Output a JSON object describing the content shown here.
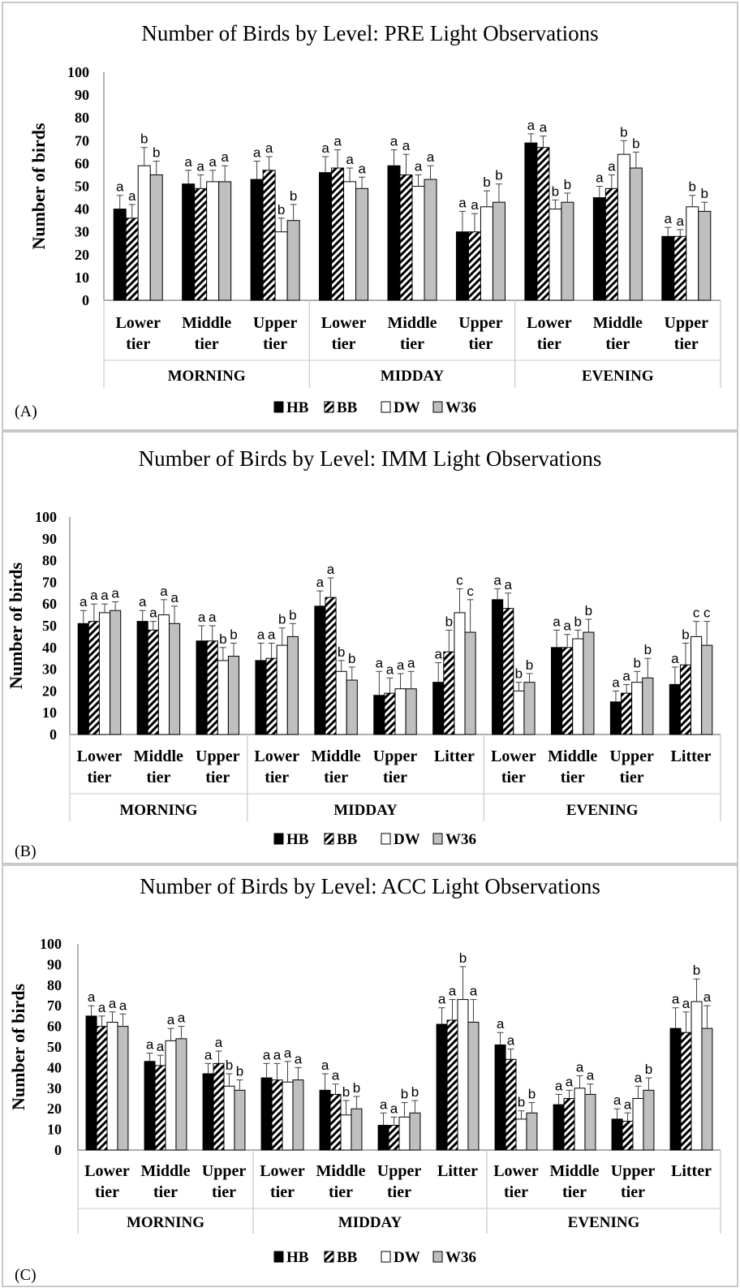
{
  "colors": {
    "HB": "#000000",
    "BB": "hatch",
    "DW": "#ffffff",
    "W36": "#bfbfbf",
    "border": "#c8c8c8",
    "axis": "#7f7f7f",
    "error_bar": "#404040"
  },
  "legend": [
    "HB",
    "BB",
    "DW",
    "W36"
  ],
  "chart_data": [
    {
      "type": "bar",
      "panel_label": "(A)",
      "title": "Number of Birds by Level:  PRE Light Observations",
      "ylabel": "Number of birds",
      "ylim": [
        0,
        100
      ],
      "yticks": [
        "0",
        "10",
        "20",
        "30",
        "40",
        "50",
        "60",
        "70",
        "80",
        "90",
        "100"
      ],
      "grid": false,
      "legend_position": "bottom",
      "series_names": [
        "HB",
        "BB",
        "DW",
        "W36"
      ],
      "groups": [
        {
          "label": "MORNING",
          "categories": [
            {
              "label": [
                "Lower",
                "tier"
              ],
              "values": [
                40,
                36,
                59,
                55
              ],
              "errors": [
                6,
                6,
                8,
                6
              ],
              "letters": [
                "a",
                "a",
                "b",
                "b"
              ]
            },
            {
              "label": [
                "Middle",
                "tier"
              ],
              "values": [
                51,
                49,
                52,
                52
              ],
              "errors": [
                6,
                6,
                5,
                7
              ],
              "letters": [
                "a",
                "a",
                "a",
                "a"
              ]
            },
            {
              "label": [
                "Upper",
                "tier"
              ],
              "values": [
                53,
                57,
                30,
                35
              ],
              "errors": [
                8,
                6,
                6,
                7
              ],
              "letters": [
                "a",
                "a",
                "b",
                "b"
              ]
            }
          ]
        },
        {
          "label": "MIDDAY",
          "categories": [
            {
              "label": [
                "Lower",
                "tier"
              ],
              "values": [
                56,
                58,
                52,
                49
              ],
              "errors": [
                7,
                8,
                6,
                5
              ],
              "letters": [
                "a",
                "a",
                "a",
                "a"
              ]
            },
            {
              "label": [
                "Middle",
                "tier"
              ],
              "values": [
                59,
                55,
                50,
                53
              ],
              "errors": [
                7,
                9,
                5,
                6
              ],
              "letters": [
                "a",
                "a",
                "a",
                "a"
              ]
            },
            {
              "label": [
                "Upper",
                "tier"
              ],
              "values": [
                30,
                30,
                41,
                43
              ],
              "errors": [
                9,
                8,
                7,
                8
              ],
              "letters": [
                "a",
                "a",
                "b",
                "b"
              ]
            }
          ]
        },
        {
          "label": "EVENING",
          "categories": [
            {
              "label": [
                "Lower",
                "tier"
              ],
              "values": [
                69,
                67,
                40,
                43
              ],
              "errors": [
                4,
                5,
                4,
                4
              ],
              "letters": [
                "a",
                "a",
                "b",
                "b"
              ]
            },
            {
              "label": [
                "Middle",
                "tier"
              ],
              "values": [
                45,
                49,
                64,
                58
              ],
              "errors": [
                5,
                6,
                6,
                7
              ],
              "letters": [
                "a",
                "a",
                "b",
                "b"
              ]
            },
            {
              "label": [
                "Upper",
                "tier"
              ],
              "values": [
                28,
                28,
                41,
                39
              ],
              "errors": [
                4,
                3,
                5,
                4
              ],
              "letters": [
                "a",
                "a",
                "b",
                "b"
              ]
            }
          ]
        }
      ]
    },
    {
      "type": "bar",
      "panel_label": "(B)",
      "title": "Number of Birds by Level:  IMM Light Observations",
      "ylabel": "Number of birds",
      "ylim": [
        0,
        100
      ],
      "yticks": [
        "0",
        "10",
        "20",
        "30",
        "40",
        "50",
        "60",
        "70",
        "80",
        "90",
        "100"
      ],
      "grid": false,
      "legend_position": "bottom",
      "series_names": [
        "HB",
        "BB",
        "DW",
        "W36"
      ],
      "groups": [
        {
          "label": "MORNING",
          "categories": [
            {
              "label": [
                "Lower",
                "tier"
              ],
              "values": [
                51,
                52,
                56,
                57
              ],
              "errors": [
                6,
                8,
                4,
                4
              ],
              "letters": [
                "a",
                "a",
                "a",
                "a"
              ]
            },
            {
              "label": [
                "Middle",
                "tier"
              ],
              "values": [
                52,
                48,
                55,
                51
              ],
              "errors": [
                5,
                4,
                7,
                8
              ],
              "letters": [
                "a",
                "a",
                "a",
                "a"
              ]
            },
            {
              "label": [
                "Upper",
                "tier"
              ],
              "values": [
                43,
                43,
                34,
                36
              ],
              "errors": [
                7,
                7,
                6,
                6
              ],
              "letters": [
                "a",
                "a",
                "b",
                "b"
              ]
            }
          ]
        },
        {
          "label": "MIDDAY",
          "categories": [
            {
              "label": [
                "Lower",
                "tier"
              ],
              "values": [
                34,
                35,
                41,
                45
              ],
              "errors": [
                8,
                7,
                8,
                6
              ],
              "letters": [
                "a",
                "a",
                "b",
                "b"
              ]
            },
            {
              "label": [
                "Middle",
                "tier"
              ],
              "values": [
                59,
                63,
                29,
                25
              ],
              "errors": [
                7,
                9,
                5,
                6
              ],
              "letters": [
                "a",
                "a",
                "b",
                "b"
              ]
            },
            {
              "label": [
                "Upper",
                "tier"
              ],
              "values": [
                18,
                19,
                21,
                21
              ],
              "errors": [
                11,
                7,
                7,
                8
              ],
              "letters": [
                "a",
                "a",
                "a",
                "a"
              ]
            },
            {
              "label": [
                "Litter"
              ],
              "values": [
                24,
                38,
                56,
                47
              ],
              "errors": [
                9,
                10,
                11,
                15
              ],
              "letters": [
                "a",
                "b",
                "c",
                "c"
              ]
            }
          ]
        },
        {
          "label": "EVENING",
          "categories": [
            {
              "label": [
                "Lower",
                "tier"
              ],
              "values": [
                62,
                58,
                20,
                24
              ],
              "errors": [
                5,
                7,
                4,
                4
              ],
              "letters": [
                "a",
                "a",
                "b",
                "b"
              ]
            },
            {
              "label": [
                "Middle",
                "tier"
              ],
              "values": [
                40,
                40,
                44,
                47
              ],
              "errors": [
                8,
                6,
                4,
                6
              ],
              "letters": [
                "a",
                "a",
                "b",
                "b"
              ]
            },
            {
              "label": [
                "Upper",
                "tier"
              ],
              "values": [
                15,
                19,
                24,
                26
              ],
              "errors": [
                5,
                4,
                5,
                9
              ],
              "letters": [
                "a",
                "a",
                "b",
                "b"
              ]
            },
            {
              "label": [
                "Litter"
              ],
              "values": [
                23,
                32,
                45,
                41
              ],
              "errors": [
                8,
                10,
                7,
                11
              ],
              "letters": [
                "a",
                "b",
                "c",
                "c"
              ]
            }
          ]
        }
      ]
    },
    {
      "type": "bar",
      "panel_label": "(C)",
      "title": "Number of Birds by Level:  ACC Light Observations",
      "ylabel": "Number of birds",
      "ylim": [
        0,
        100
      ],
      "yticks": [
        "0",
        "10",
        "20",
        "30",
        "40",
        "50",
        "60",
        "70",
        "80",
        "90",
        "100"
      ],
      "grid": false,
      "legend_position": "bottom",
      "series_names": [
        "HB",
        "BB",
        "DW",
        "W36"
      ],
      "groups": [
        {
          "label": "MORNING",
          "categories": [
            {
              "label": [
                "Lower",
                "tier"
              ],
              "values": [
                65,
                60,
                62,
                60
              ],
              "errors": [
                5,
                5,
                5,
                6
              ],
              "letters": [
                "a",
                "a",
                "a",
                "a"
              ]
            },
            {
              "label": [
                "Middle",
                "tier"
              ],
              "values": [
                43,
                41,
                53,
                54
              ],
              "errors": [
                4,
                5,
                6,
                6
              ],
              "letters": [
                "a",
                "a",
                "a",
                "a"
              ]
            },
            {
              "label": [
                "Upper",
                "tier"
              ],
              "values": [
                37,
                42,
                31,
                29
              ],
              "errors": [
                5,
                6,
                6,
                5
              ],
              "letters": [
                "a",
                "a",
                "b",
                "b"
              ]
            }
          ]
        },
        {
          "label": "MIDDAY",
          "categories": [
            {
              "label": [
                "Lower",
                "tier"
              ],
              "values": [
                35,
                34,
                33,
                34
              ],
              "errors": [
                7,
                8,
                10,
                6
              ],
              "letters": [
                "a",
                "a",
                "a",
                "a"
              ]
            },
            {
              "label": [
                "Middle",
                "tier"
              ],
              "values": [
                29,
                27,
                17,
                20
              ],
              "errors": [
                8,
                5,
                7,
                6
              ],
              "letters": [
                "a",
                "a",
                "b",
                "b"
              ]
            },
            {
              "label": [
                "Upper",
                "tier"
              ],
              "values": [
                12,
                12,
                16,
                18
              ],
              "errors": [
                6,
                4,
                7,
                6
              ],
              "letters": [
                "a",
                "a",
                "b",
                "b"
              ]
            },
            {
              "label": [
                "Litter"
              ],
              "values": [
                61,
                63,
                73,
                62
              ],
              "errors": [
                8,
                10,
                16,
                11
              ],
              "letters": [
                "a",
                "a",
                "b",
                "a"
              ]
            }
          ]
        },
        {
          "label": "EVENING",
          "categories": [
            {
              "label": [
                "Lower",
                "tier"
              ],
              "values": [
                51,
                44,
                15,
                18
              ],
              "errors": [
                6,
                5,
                4,
                5
              ],
              "letters": [
                "a",
                "a",
                "b",
                "b"
              ]
            },
            {
              "label": [
                "Middle",
                "tier"
              ],
              "values": [
                22,
                25,
                30,
                27
              ],
              "errors": [
                5,
                4,
                6,
                5
              ],
              "letters": [
                "a",
                "a",
                "a",
                "a"
              ]
            },
            {
              "label": [
                "Upper",
                "tier"
              ],
              "values": [
                15,
                14,
                25,
                29
              ],
              "errors": [
                5,
                4,
                6,
                6
              ],
              "letters": [
                "a",
                "a",
                "a",
                "b"
              ]
            },
            {
              "label": [
                "Litter"
              ],
              "values": [
                59,
                57,
                72,
                59
              ],
              "errors": [
                10,
                10,
                11,
                11
              ],
              "letters": [
                "a",
                "a",
                "b",
                "a"
              ]
            }
          ]
        }
      ]
    }
  ]
}
